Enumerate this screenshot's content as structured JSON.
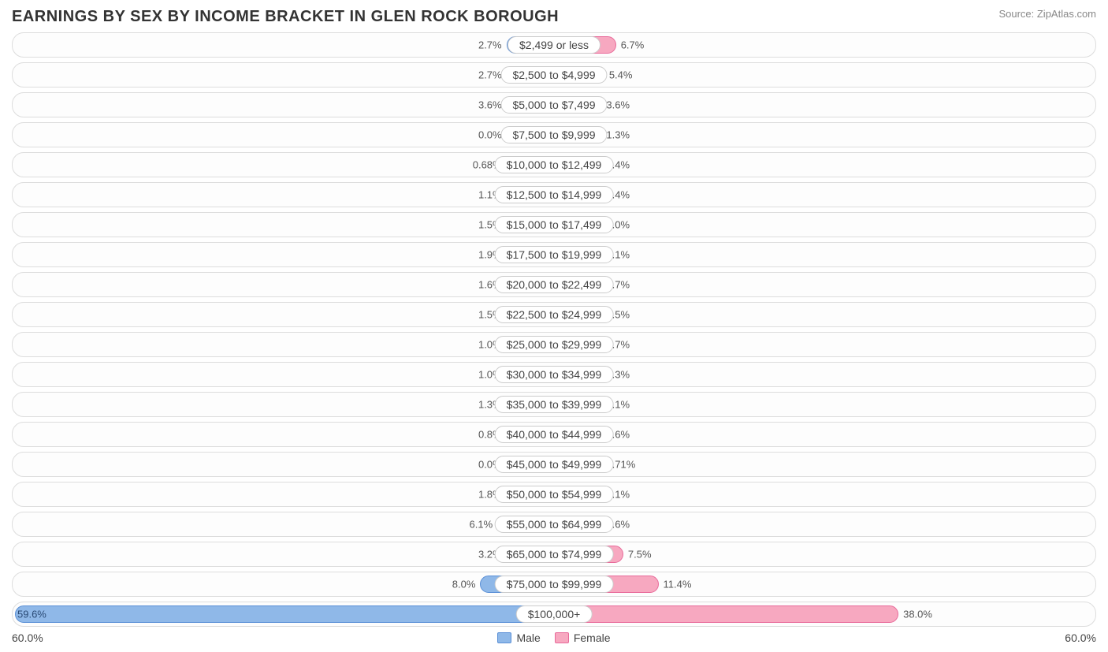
{
  "title": "EARNINGS BY SEX BY INCOME BRACKET IN GLEN ROCK BOROUGH",
  "source": "Source: ZipAtlas.com",
  "axis_max": 60.0,
  "axis_left_label": "60.0%",
  "axis_right_label": "60.0%",
  "colors": {
    "male_fill": "#8fb8e8",
    "male_stroke": "#5a8fd6",
    "female_fill": "#f7a8c0",
    "female_stroke": "#e86a9a",
    "row_border": "#dddddd",
    "background": "#ffffff",
    "text": "#444444"
  },
  "legend": {
    "male": "Male",
    "female": "Female"
  },
  "min_bar_pct": 8.5,
  "rows": [
    {
      "label": "$2,499 or less",
      "male": 2.7,
      "female": 6.7,
      "male_txt": "2.7%",
      "female_txt": "6.7%"
    },
    {
      "label": "$2,500 to $4,999",
      "male": 2.7,
      "female": 5.4,
      "male_txt": "2.7%",
      "female_txt": "5.4%"
    },
    {
      "label": "$5,000 to $7,499",
      "male": 3.6,
      "female": 3.6,
      "male_txt": "3.6%",
      "female_txt": "3.6%"
    },
    {
      "label": "$7,500 to $9,999",
      "male": 0.0,
      "female": 1.3,
      "male_txt": "0.0%",
      "female_txt": "1.3%"
    },
    {
      "label": "$10,000 to $12,499",
      "male": 0.68,
      "female": 3.4,
      "male_txt": "0.68%",
      "female_txt": "3.4%"
    },
    {
      "label": "$12,500 to $14,999",
      "male": 1.1,
      "female": 2.4,
      "male_txt": "1.1%",
      "female_txt": "2.4%"
    },
    {
      "label": "$15,000 to $17,499",
      "male": 1.5,
      "female": 0.0,
      "male_txt": "1.5%",
      "female_txt": "0.0%"
    },
    {
      "label": "$17,500 to $19,999",
      "male": 1.9,
      "female": 1.1,
      "male_txt": "1.9%",
      "female_txt": "1.1%"
    },
    {
      "label": "$20,000 to $22,499",
      "male": 1.6,
      "female": 1.7,
      "male_txt": "1.6%",
      "female_txt": "1.7%"
    },
    {
      "label": "$22,500 to $24,999",
      "male": 1.5,
      "female": 2.5,
      "male_txt": "1.5%",
      "female_txt": "2.5%"
    },
    {
      "label": "$25,000 to $29,999",
      "male": 1.0,
      "female": 1.7,
      "male_txt": "1.0%",
      "female_txt": "1.7%"
    },
    {
      "label": "$30,000 to $34,999",
      "male": 1.0,
      "female": 1.3,
      "male_txt": "1.0%",
      "female_txt": "1.3%"
    },
    {
      "label": "$35,000 to $39,999",
      "male": 1.3,
      "female": 3.1,
      "male_txt": "1.3%",
      "female_txt": "3.1%"
    },
    {
      "label": "$40,000 to $44,999",
      "male": 0.8,
      "female": 1.6,
      "male_txt": "0.8%",
      "female_txt": "1.6%"
    },
    {
      "label": "$45,000 to $49,999",
      "male": 0.0,
      "female": 0.71,
      "male_txt": "0.0%",
      "female_txt": "0.71%"
    },
    {
      "label": "$50,000 to $54,999",
      "male": 1.8,
      "female": 3.1,
      "male_txt": "1.8%",
      "female_txt": "3.1%"
    },
    {
      "label": "$55,000 to $64,999",
      "male": 6.1,
      "female": 3.6,
      "male_txt": "6.1%",
      "female_txt": "3.6%"
    },
    {
      "label": "$65,000 to $74,999",
      "male": 3.2,
      "female": 7.5,
      "male_txt": "3.2%",
      "female_txt": "7.5%"
    },
    {
      "label": "$75,000 to $99,999",
      "male": 8.0,
      "female": 11.4,
      "male_txt": "8.0%",
      "female_txt": "11.4%"
    },
    {
      "label": "$100,000+",
      "male": 59.6,
      "female": 38.0,
      "male_txt": "59.6%",
      "female_txt": "38.0%"
    }
  ]
}
